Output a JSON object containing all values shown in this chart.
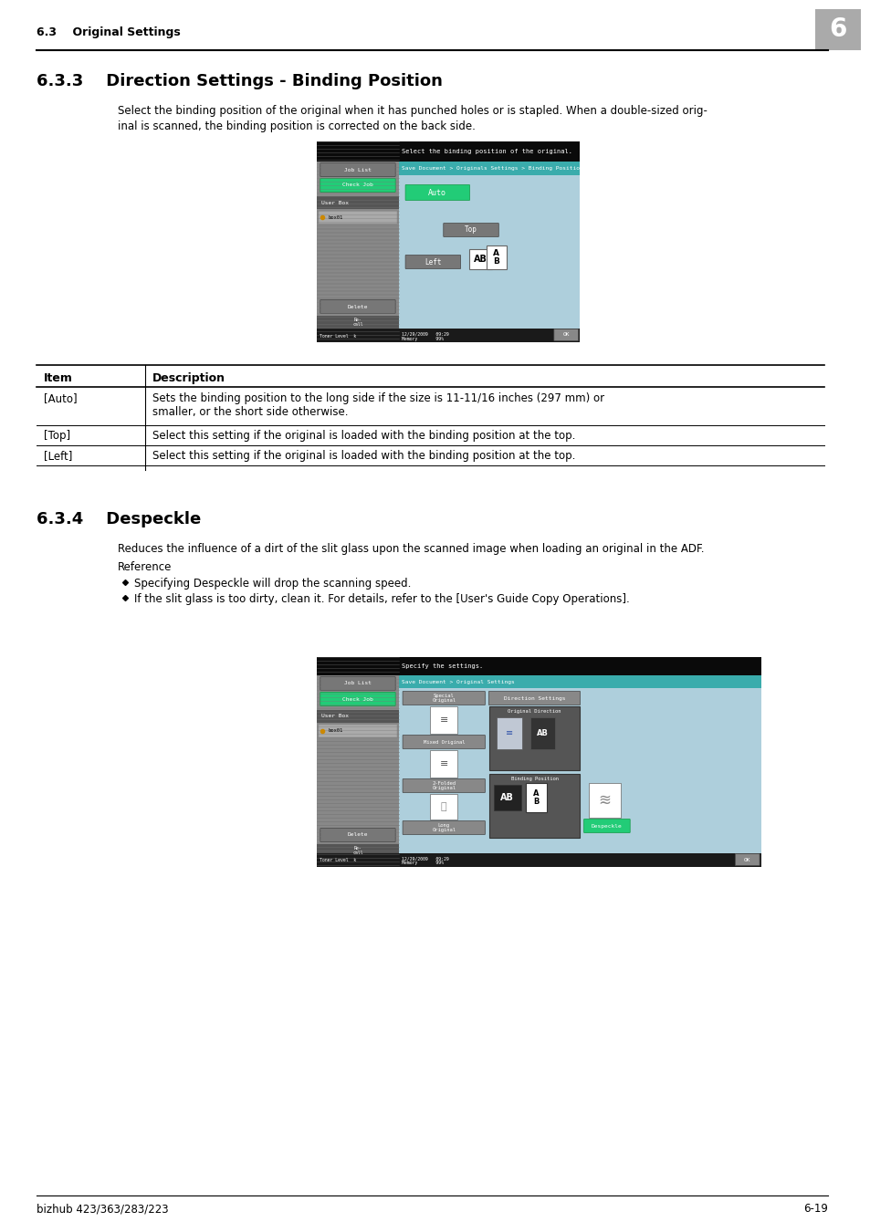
{
  "page_bg": "#ffffff",
  "header_text": "6.3    Original Settings",
  "header_number": "6",
  "section_title_1": "6.3.3    Direction Settings - Binding Position",
  "section_desc_1a": "Select the binding position of the original when it has punched holes or is stapled. When a double-sized orig-",
  "section_desc_1b": "inal is scanned, the binding position is corrected on the back side.",
  "section_title_2": "6.3.4    Despeckle",
  "section_desc_2": "Reduces the influence of a dirt of the slit glass upon the scanned image when loading an original in the ADF.",
  "reference_label": "Reference",
  "bullet_1": "Specifying Despeckle will drop the scanning speed.",
  "bullet_2": "If the slit glass is too dirty, clean it. For details, refer to the [User's Guide Copy Operations].",
  "table_header_item": "Item",
  "table_header_desc": "Description",
  "table_rows": [
    [
      "[Auto]",
      "Sets the binding position to the long side if the size is 11-11/16 inches (297 mm) or\nsmaller, or the short side otherwise."
    ],
    [
      "[Top]",
      "Select this setting if the original is loaded with the binding position at the top."
    ],
    [
      "[Left]",
      "Select this setting if the original is loaded with the binding position at the top."
    ]
  ],
  "footer_left": "bizhub 423/363/283/223",
  "footer_right": "6-19",
  "scr1_msg": "Select the binding position of the original.",
  "scr1_breadcrumb": "Save Document > Originals Settings > Binding Position",
  "scr1_joblist": "Job List",
  "scr1_checkjob": "Check Job",
  "scr1_userbox": "User Box",
  "scr1_box01": "box01",
  "scr1_delete": "Delete",
  "scr1_recall": "Re-\ncall",
  "scr1_toner": "Toner Level  k",
  "scr1_datetime": "12/29/2009   09:29",
  "scr1_memory": "Memory       99%",
  "scr1_auto": "Auto",
  "scr1_top": "Top",
  "scr1_left": "Left",
  "scr1_ok": "OK",
  "scr2_msg": "Specify the settings.",
  "scr2_breadcrumb": "Save Document > Original Settings",
  "scr2_joblist": "Job List",
  "scr2_checkjob": "Check Job",
  "scr2_userbox": "User Box",
  "scr2_box01": "box01",
  "scr2_delete": "Delete",
  "scr2_recall": "Re-\ncall",
  "scr2_toner": "Toner Level  k",
  "scr2_datetime": "12/29/2009   09:29",
  "scr2_memory": "Memory       99%",
  "scr2_special": "Special\nOriginal",
  "scr2_mixed": "Mixed Original",
  "scr2_2folded": "2-Folded\nOriginal",
  "scr2_long": "Long\nOriginal",
  "scr2_dir_settings": "Direction Settings",
  "scr2_orig_dir": "Original Direction",
  "scr2_binding": "Binding Position",
  "scr2_despeckle": "Despeckle",
  "scr2_ok": "OK",
  "teal_color": "#3aacac",
  "green_btn": "#22cc77",
  "gray_btn": "#888888",
  "dark_gray_btn": "#666666",
  "screen_bg": "#aecfdc",
  "left_panel_bg": "#888888",
  "black_bar": "#0a0a0a",
  "stripe_color": "#999999"
}
